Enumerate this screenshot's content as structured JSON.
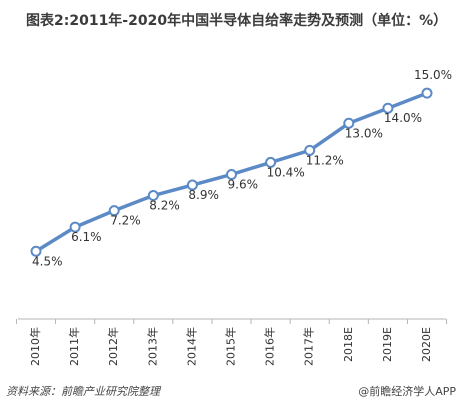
{
  "chart_data": {
    "type": "line",
    "title": "图表2:2011年-2020年中国半导体自给率走势及预测（单位：%）",
    "categories": [
      "2010年",
      "2011年",
      "2012年",
      "2013年",
      "2014年",
      "2015年",
      "2016年",
      "2017年",
      "2018E",
      "2019E",
      "2020E"
    ],
    "series": [
      {
        "values": [
          4.5,
          6.1,
          7.2,
          8.2,
          8.9,
          9.6,
          10.4,
          11.2,
          13.0,
          14.0,
          15.0
        ],
        "labels": [
          "4.5%",
          "6.1%",
          "7.2%",
          "8.2%",
          "8.9%",
          "9.6%",
          "10.4%",
          "11.2%",
          "13.0%",
          "14.0%",
          "15.0%"
        ]
      }
    ],
    "ylim": [
      0,
      18
    ],
    "grid": false,
    "line_color": "#5b8ac6",
    "marker_fill": "#ffffff"
  },
  "footer": {
    "source": "资料来源：前瞻产业研究院整理",
    "watermark": "@前瞻经济学人APP"
  }
}
